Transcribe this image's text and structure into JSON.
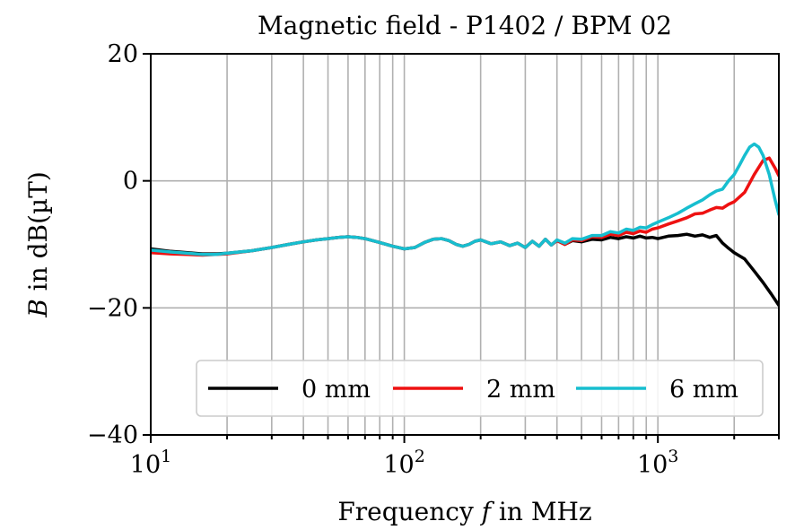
{
  "chart_data": {
    "type": "line",
    "title": "Magnetic field - P1402 / BPM 02",
    "xlabel_parts": [
      "Frequency ",
      "f",
      " in MHz"
    ],
    "ylabel_parts": [
      "B",
      " in dB(µT)"
    ],
    "xscale": "log",
    "xlim": [
      10,
      3000
    ],
    "ylim": [
      -40,
      20
    ],
    "grid": true,
    "legend": {
      "placement": "lower-right",
      "columns": 3
    },
    "x_ticks": [
      {
        "value": 10,
        "base": "10",
        "exp": "1"
      },
      {
        "value": 100,
        "base": "10",
        "exp": "2"
      },
      {
        "value": 1000,
        "base": "10",
        "exp": "3"
      }
    ],
    "y_ticks": [
      {
        "value": 20,
        "label": "20"
      },
      {
        "value": 0,
        "label": "0"
      },
      {
        "value": -20,
        "label": "−20"
      },
      {
        "value": -40,
        "label": "−40"
      }
    ],
    "series": [
      {
        "name": "0 mm",
        "color": "#000000",
        "points": [
          [
            10,
            -10.7
          ],
          [
            12,
            -11.1
          ],
          [
            14,
            -11.3
          ],
          [
            16,
            -11.5
          ],
          [
            18,
            -11.5
          ],
          [
            20,
            -11.4
          ],
          [
            25,
            -11.0
          ],
          [
            30,
            -10.5
          ],
          [
            35,
            -10.0
          ],
          [
            40,
            -9.6
          ],
          [
            45,
            -9.3
          ],
          [
            50,
            -9.1
          ],
          [
            55,
            -8.9
          ],
          [
            60,
            -8.8
          ],
          [
            65,
            -8.9
          ],
          [
            70,
            -9.1
          ],
          [
            80,
            -9.7
          ],
          [
            90,
            -10.3
          ],
          [
            100,
            -10.7
          ],
          [
            110,
            -10.5
          ],
          [
            120,
            -9.7
          ],
          [
            130,
            -9.2
          ],
          [
            140,
            -9.1
          ],
          [
            150,
            -9.4
          ],
          [
            160,
            -10.0
          ],
          [
            170,
            -10.3
          ],
          [
            180,
            -10.0
          ],
          [
            190,
            -9.5
          ],
          [
            200,
            -9.3
          ],
          [
            220,
            -9.9
          ],
          [
            240,
            -9.6
          ],
          [
            260,
            -10.2
          ],
          [
            280,
            -9.8
          ],
          [
            300,
            -10.5
          ],
          [
            320,
            -9.5
          ],
          [
            340,
            -10.3
          ],
          [
            360,
            -9.2
          ],
          [
            380,
            -10.1
          ],
          [
            400,
            -9.4
          ],
          [
            430,
            -10.0
          ],
          [
            460,
            -9.4
          ],
          [
            500,
            -9.6
          ],
          [
            550,
            -9.2
          ],
          [
            600,
            -9.3
          ],
          [
            650,
            -8.9
          ],
          [
            700,
            -9.1
          ],
          [
            750,
            -8.8
          ],
          [
            800,
            -9.0
          ],
          [
            850,
            -8.7
          ],
          [
            900,
            -9.0
          ],
          [
            950,
            -8.9
          ],
          [
            1000,
            -9.1
          ],
          [
            1100,
            -8.7
          ],
          [
            1200,
            -8.6
          ],
          [
            1300,
            -8.4
          ],
          [
            1400,
            -8.7
          ],
          [
            1500,
            -8.5
          ],
          [
            1600,
            -8.9
          ],
          [
            1700,
            -8.6
          ],
          [
            1800,
            -9.8
          ],
          [
            1900,
            -10.6
          ],
          [
            2000,
            -11.3
          ],
          [
            2200,
            -12.3
          ],
          [
            2400,
            -14.2
          ],
          [
            2600,
            -16.0
          ],
          [
            2800,
            -17.8
          ],
          [
            3000,
            -19.6
          ]
        ]
      },
      {
        "name": "2 mm",
        "color": "#ee1111",
        "points": [
          [
            10,
            -11.3
          ],
          [
            12,
            -11.5
          ],
          [
            14,
            -11.6
          ],
          [
            16,
            -11.7
          ],
          [
            18,
            -11.6
          ],
          [
            20,
            -11.5
          ],
          [
            25,
            -11.0
          ],
          [
            30,
            -10.5
          ],
          [
            35,
            -10.0
          ],
          [
            40,
            -9.6
          ],
          [
            45,
            -9.3
          ],
          [
            50,
            -9.1
          ],
          [
            55,
            -8.9
          ],
          [
            60,
            -8.8
          ],
          [
            65,
            -8.9
          ],
          [
            70,
            -9.1
          ],
          [
            80,
            -9.7
          ],
          [
            90,
            -10.3
          ],
          [
            100,
            -10.7
          ],
          [
            110,
            -10.5
          ],
          [
            120,
            -9.7
          ],
          [
            130,
            -9.2
          ],
          [
            140,
            -9.1
          ],
          [
            150,
            -9.4
          ],
          [
            160,
            -10.0
          ],
          [
            170,
            -10.3
          ],
          [
            180,
            -10.0
          ],
          [
            190,
            -9.5
          ],
          [
            200,
            -9.3
          ],
          [
            220,
            -9.9
          ],
          [
            240,
            -9.6
          ],
          [
            260,
            -10.2
          ],
          [
            280,
            -9.8
          ],
          [
            300,
            -10.5
          ],
          [
            320,
            -9.5
          ],
          [
            340,
            -10.3
          ],
          [
            360,
            -9.2
          ],
          [
            380,
            -10.1
          ],
          [
            400,
            -9.4
          ],
          [
            430,
            -10.0
          ],
          [
            460,
            -9.3
          ],
          [
            500,
            -9.4
          ],
          [
            550,
            -8.8
          ],
          [
            600,
            -8.9
          ],
          [
            650,
            -8.4
          ],
          [
            700,
            -8.6
          ],
          [
            750,
            -8.1
          ],
          [
            800,
            -8.3
          ],
          [
            850,
            -7.9
          ],
          [
            900,
            -8.1
          ],
          [
            950,
            -7.6
          ],
          [
            1000,
            -7.4
          ],
          [
            1100,
            -6.8
          ],
          [
            1200,
            -6.3
          ],
          [
            1300,
            -5.8
          ],
          [
            1400,
            -5.2
          ],
          [
            1500,
            -5.1
          ],
          [
            1600,
            -4.6
          ],
          [
            1700,
            -4.2
          ],
          [
            1800,
            -4.3
          ],
          [
            1900,
            -3.7
          ],
          [
            2000,
            -3.3
          ],
          [
            2200,
            -1.8
          ],
          [
            2400,
            1.0
          ],
          [
            2600,
            3.2
          ],
          [
            2750,
            3.6
          ],
          [
            2900,
            2.0
          ],
          [
            3000,
            0.8
          ]
        ]
      },
      {
        "name": "6 mm",
        "color": "#17becf",
        "points": [
          [
            10,
            -10.9
          ],
          [
            12,
            -11.2
          ],
          [
            14,
            -11.4
          ],
          [
            16,
            -11.6
          ],
          [
            18,
            -11.6
          ],
          [
            20,
            -11.4
          ],
          [
            25,
            -11.0
          ],
          [
            30,
            -10.5
          ],
          [
            35,
            -10.0
          ],
          [
            40,
            -9.6
          ],
          [
            45,
            -9.3
          ],
          [
            50,
            -9.1
          ],
          [
            55,
            -8.9
          ],
          [
            60,
            -8.8
          ],
          [
            65,
            -8.9
          ],
          [
            70,
            -9.1
          ],
          [
            80,
            -9.7
          ],
          [
            90,
            -10.3
          ],
          [
            100,
            -10.7
          ],
          [
            110,
            -10.5
          ],
          [
            120,
            -9.7
          ],
          [
            130,
            -9.2
          ],
          [
            140,
            -9.1
          ],
          [
            150,
            -9.4
          ],
          [
            160,
            -10.0
          ],
          [
            170,
            -10.3
          ],
          [
            180,
            -10.0
          ],
          [
            190,
            -9.5
          ],
          [
            200,
            -9.3
          ],
          [
            220,
            -9.9
          ],
          [
            240,
            -9.6
          ],
          [
            260,
            -10.2
          ],
          [
            280,
            -9.8
          ],
          [
            300,
            -10.5
          ],
          [
            320,
            -9.5
          ],
          [
            340,
            -10.3
          ],
          [
            360,
            -9.2
          ],
          [
            380,
            -10.1
          ],
          [
            400,
            -9.3
          ],
          [
            430,
            -9.8
          ],
          [
            460,
            -9.1
          ],
          [
            500,
            -9.2
          ],
          [
            550,
            -8.6
          ],
          [
            600,
            -8.6
          ],
          [
            650,
            -8.0
          ],
          [
            700,
            -8.2
          ],
          [
            750,
            -7.6
          ],
          [
            800,
            -7.8
          ],
          [
            850,
            -7.3
          ],
          [
            900,
            -7.4
          ],
          [
            950,
            -6.9
          ],
          [
            1000,
            -6.5
          ],
          [
            1100,
            -5.8
          ],
          [
            1200,
            -5.1
          ],
          [
            1300,
            -4.3
          ],
          [
            1400,
            -3.6
          ],
          [
            1500,
            -3.0
          ],
          [
            1600,
            -2.2
          ],
          [
            1700,
            -1.6
          ],
          [
            1800,
            -1.3
          ],
          [
            1900,
            0.0
          ],
          [
            2000,
            1.0
          ],
          [
            2100,
            2.5
          ],
          [
            2200,
            4.0
          ],
          [
            2300,
            5.3
          ],
          [
            2400,
            5.8
          ],
          [
            2500,
            5.3
          ],
          [
            2600,
            4.0
          ],
          [
            2750,
            1.0
          ],
          [
            2900,
            -3.0
          ],
          [
            3000,
            -5.3
          ]
        ]
      }
    ]
  }
}
